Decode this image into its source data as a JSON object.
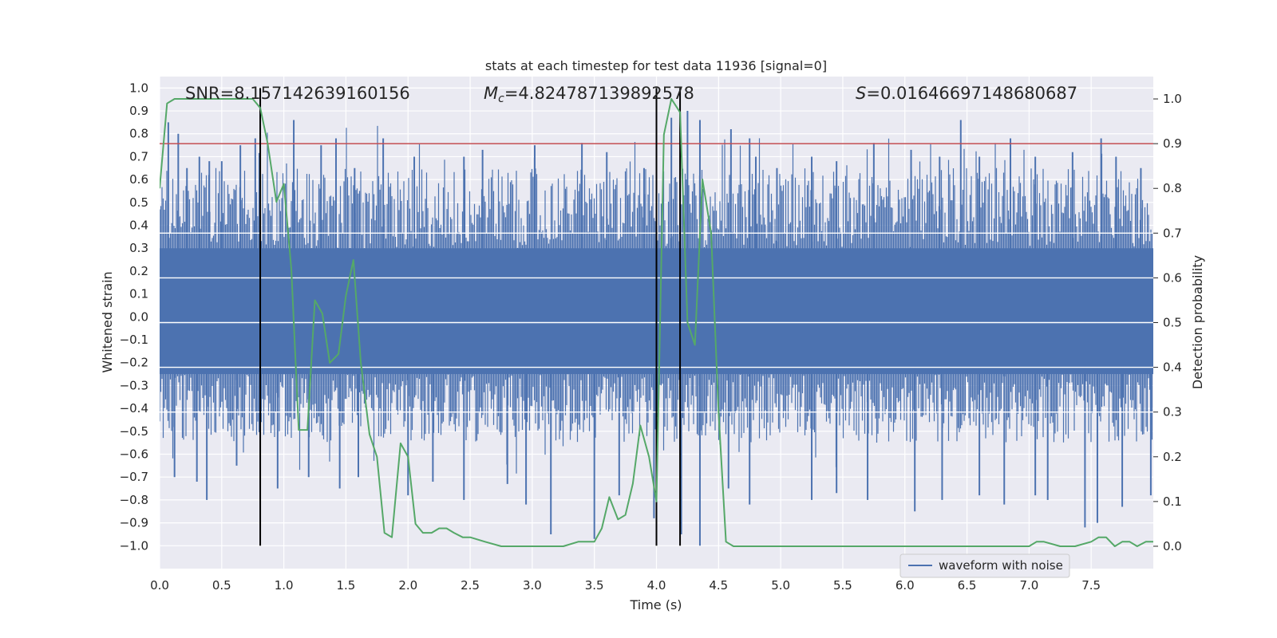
{
  "chart_data": {
    "type": "line",
    "title": "stats at each timestep for test data 11936 [signal=0]",
    "xlabel": "Time (s)",
    "ylabel_left": "Whitened strain",
    "ylabel_right": "Detection probability",
    "xlim": [
      0,
      8
    ],
    "ylim_left": [
      -1.1,
      1.05
    ],
    "ylim_right": [
      -0.05,
      1.05
    ],
    "x_ticks": [
      "0.0",
      "0.5",
      "1.0",
      "1.5",
      "2.0",
      "2.5",
      "3.0",
      "3.5",
      "4.0",
      "4.5",
      "5.0",
      "5.5",
      "6.0",
      "6.5",
      "7.0",
      "7.5"
    ],
    "y_left_ticks": [
      "1.0",
      "0.9",
      "0.8",
      "0.7",
      "0.6",
      "0.5",
      "0.4",
      "0.3",
      "0.2",
      "0.1",
      "0.0",
      "−0.1",
      "−0.2",
      "−0.3",
      "−0.4",
      "−0.5",
      "−0.6",
      "−0.7",
      "−0.8",
      "−0.9",
      "−1.0"
    ],
    "y_right_ticks": [
      "1.0",
      "0.9",
      "0.8",
      "0.7",
      "0.6",
      "0.5",
      "0.4",
      "0.3",
      "0.2",
      "0.1",
      "0.0"
    ],
    "annotations": {
      "snr": "SNR=8.157142639160156",
      "mc_symbol": "M",
      "mc_sub": "c",
      "mc_value": "=4.824787139892578",
      "s_symbol": "S",
      "s_value": "=0.01646697148680687"
    },
    "threshold": {
      "axis": "right",
      "value": 0.9,
      "color": "#c44e52"
    },
    "vertical_markers": {
      "x": [
        0.81,
        4.0,
        4.19
      ],
      "y_range": [
        -1.0,
        1.0
      ],
      "color": "#000000"
    },
    "series": [
      {
        "name": "waveform with noise",
        "axis": "left",
        "color": "#4c72b0",
        "style": "dense-noise",
        "band": [
          -0.35,
          0.4
        ],
        "peaks_up": [
          [
            0.07,
            0.85
          ],
          [
            0.15,
            0.8
          ],
          [
            0.22,
            0.65
          ],
          [
            0.32,
            0.7
          ],
          [
            0.4,
            0.68
          ],
          [
            0.5,
            0.68
          ],
          [
            0.65,
            0.75
          ],
          [
            0.77,
            0.78
          ],
          [
            1.08,
            0.86
          ],
          [
            1.3,
            0.75
          ],
          [
            1.42,
            0.78
          ],
          [
            1.57,
            0.65
          ],
          [
            1.8,
            0.78
          ],
          [
            2.05,
            0.7
          ],
          [
            2.45,
            0.7
          ],
          [
            2.6,
            0.73
          ],
          [
            3.02,
            0.75
          ],
          [
            3.4,
            0.76
          ],
          [
            3.6,
            0.72
          ],
          [
            3.9,
            0.65
          ],
          [
            4.12,
            0.87
          ],
          [
            4.25,
            0.9
          ],
          [
            4.35,
            0.86
          ],
          [
            4.6,
            0.82
          ],
          [
            4.75,
            0.78
          ],
          [
            4.8,
            0.7
          ],
          [
            4.97,
            0.65
          ],
          [
            5.25,
            0.7
          ],
          [
            5.45,
            0.68
          ],
          [
            5.75,
            0.76
          ],
          [
            6.05,
            0.73
          ],
          [
            6.28,
            0.7
          ],
          [
            6.45,
            0.86
          ],
          [
            6.6,
            0.7
          ],
          [
            6.85,
            0.78
          ],
          [
            7.05,
            0.7
          ],
          [
            7.35,
            0.72
          ],
          [
            7.58,
            0.78
          ],
          [
            7.7,
            0.7
          ],
          [
            7.9,
            0.65
          ]
        ],
        "peaks_down": [
          [
            0.12,
            -0.7
          ],
          [
            0.3,
            -0.72
          ],
          [
            0.38,
            -0.8
          ],
          [
            0.62,
            -0.65
          ],
          [
            0.95,
            -0.75
          ],
          [
            1.2,
            -0.7
          ],
          [
            1.45,
            -0.75
          ],
          [
            1.6,
            -0.7
          ],
          [
            2.0,
            -0.78
          ],
          [
            2.2,
            -0.72
          ],
          [
            2.45,
            -0.8
          ],
          [
            2.8,
            -0.73
          ],
          [
            2.95,
            -0.82
          ],
          [
            3.15,
            -0.95
          ],
          [
            3.5,
            -0.97
          ],
          [
            3.7,
            -0.78
          ],
          [
            3.98,
            -0.88
          ],
          [
            4.2,
            -0.95
          ],
          [
            4.35,
            -1.0
          ],
          [
            4.58,
            -0.75
          ],
          [
            4.75,
            -0.82
          ],
          [
            5.25,
            -0.8
          ],
          [
            5.45,
            -0.77
          ],
          [
            5.7,
            -0.8
          ],
          [
            6.08,
            -0.85
          ],
          [
            6.3,
            -0.8
          ],
          [
            6.6,
            -0.78
          ],
          [
            6.8,
            -0.82
          ],
          [
            7.05,
            -0.78
          ],
          [
            7.15,
            -0.8
          ],
          [
            7.45,
            -0.92
          ],
          [
            7.55,
            -0.9
          ],
          [
            7.75,
            -0.83
          ],
          [
            7.98,
            -0.78
          ]
        ]
      },
      {
        "name": "detection probability",
        "axis": "right",
        "color": "#55a868",
        "x": [
          0.0,
          0.06,
          0.12,
          0.25,
          0.5,
          0.75,
          0.81,
          0.87,
          0.94,
          1.0,
          1.06,
          1.12,
          1.19,
          1.25,
          1.31,
          1.37,
          1.44,
          1.5,
          1.56,
          1.62,
          1.69,
          1.75,
          1.81,
          1.87,
          1.94,
          2.0,
          2.06,
          2.12,
          2.19,
          2.25,
          2.31,
          2.37,
          2.44,
          2.5,
          2.62,
          2.75,
          2.87,
          3.0,
          3.12,
          3.25,
          3.37,
          3.44,
          3.5,
          3.56,
          3.62,
          3.69,
          3.75,
          3.81,
          3.87,
          3.94,
          4.0,
          4.06,
          4.12,
          4.19,
          4.25,
          4.31,
          4.37,
          4.44,
          4.5,
          4.56,
          4.62,
          4.75,
          5.0,
          5.25,
          5.5,
          5.75,
          6.0,
          6.25,
          6.37,
          6.5,
          6.75,
          6.87,
          7.0,
          7.06,
          7.12,
          7.25,
          7.37,
          7.5,
          7.56,
          7.62,
          7.69,
          7.75,
          7.81,
          7.87,
          7.94,
          8.0
        ],
        "y": [
          0.8,
          0.99,
          1.0,
          1.0,
          1.0,
          1.0,
          0.98,
          0.9,
          0.77,
          0.81,
          0.62,
          0.26,
          0.26,
          0.55,
          0.52,
          0.41,
          0.43,
          0.56,
          0.64,
          0.41,
          0.25,
          0.2,
          0.03,
          0.02,
          0.23,
          0.2,
          0.05,
          0.03,
          0.03,
          0.04,
          0.04,
          0.03,
          0.02,
          0.02,
          0.01,
          0.0,
          0.0,
          0.0,
          0.0,
          0.0,
          0.01,
          0.01,
          0.01,
          0.04,
          0.11,
          0.06,
          0.07,
          0.14,
          0.27,
          0.2,
          0.1,
          0.92,
          1.0,
          0.97,
          0.5,
          0.45,
          0.82,
          0.7,
          0.3,
          0.01,
          0.0,
          0.0,
          0.0,
          0.0,
          0.0,
          0.0,
          0.0,
          0.0,
          0.0,
          0.0,
          0.0,
          0.0,
          0.0,
          0.01,
          0.01,
          0.0,
          0.0,
          0.01,
          0.02,
          0.02,
          0.0,
          0.01,
          0.01,
          0.0,
          0.01,
          0.01
        ]
      }
    ],
    "legend": {
      "placement": "lower-center-right",
      "entries": [
        "waveform with noise"
      ]
    }
  }
}
